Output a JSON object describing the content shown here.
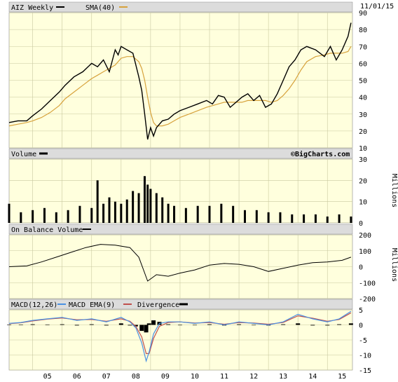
{
  "header": {
    "symbol_label": "AIZ Weekly",
    "sma_label": "SMA(40)",
    "date": "11/01/15",
    "watermark": "©BigCharts.com"
  },
  "volume_panel": {
    "label": "Volume",
    "unit": "Millions"
  },
  "obv_panel": {
    "label": "On Balance Volume",
    "unit": "Millions"
  },
  "macd_panel": {
    "label": "MACD(12,26)",
    "ema_label": "MACD EMA(9)",
    "div_label": "Divergence"
  },
  "x_axis": {
    "labels": [
      "05",
      "06",
      "07",
      "08",
      "09",
      "10",
      "11",
      "12",
      "13",
      "14",
      "15"
    ]
  },
  "colors": {
    "panel_bg": "#ffffdd",
    "grid": "#c8c8a0",
    "header_bg": "#dcdcdc",
    "price": "#000000",
    "sma": "#d7a23c",
    "macd": "#4a90e2",
    "macd_ema": "#c0504d",
    "divergence": "#000000"
  },
  "chart_data": [
    {
      "type": "line",
      "panel": "price",
      "series_names": [
        "AIZ Weekly",
        "SMA(40)"
      ],
      "ylim": [
        10,
        90
      ],
      "yticks": [
        10,
        20,
        30,
        40,
        50,
        60,
        70,
        80,
        90
      ],
      "x": [
        2004.2,
        2004.5,
        2004.8,
        2005.0,
        2005.3,
        2005.6,
        2005.9,
        2006.1,
        2006.4,
        2006.7,
        2007.0,
        2007.2,
        2007.4,
        2007.6,
        2007.8,
        2007.9,
        2008.0,
        2008.2,
        2008.4,
        2008.6,
        2008.7,
        2008.8,
        2008.9,
        2009.0,
        2009.1,
        2009.2,
        2009.4,
        2009.6,
        2009.8,
        2010.0,
        2010.3,
        2010.6,
        2010.9,
        2011.1,
        2011.3,
        2011.5,
        2011.7,
        2011.9,
        2012.1,
        2012.3,
        2012.5,
        2012.7,
        2012.9,
        2013.1,
        2013.3,
        2013.5,
        2013.7,
        2013.9,
        2014.1,
        2014.3,
        2014.6,
        2014.9,
        2015.1,
        2015.3,
        2015.5,
        2015.7,
        2015.8
      ],
      "series": [
        {
          "name": "AIZ Weekly",
          "values": [
            25,
            26,
            26,
            29,
            33,
            38,
            43,
            47,
            52,
            55,
            60,
            58,
            62,
            55,
            68,
            65,
            70,
            68,
            66,
            52,
            44,
            30,
            15,
            22,
            17,
            22,
            26,
            27,
            30,
            32,
            34,
            36,
            38,
            36,
            41,
            40,
            34,
            37,
            40,
            42,
            38,
            41,
            34,
            36,
            42,
            50,
            58,
            62,
            68,
            70,
            68,
            64,
            70,
            62,
            68,
            76,
            84
          ]
        },
        {
          "name": "SMA(40)",
          "values": [
            23,
            24,
            25,
            26,
            28,
            31,
            35,
            39,
            43,
            47,
            51,
            53,
            55,
            57,
            59,
            61,
            63,
            64,
            64,
            61,
            57,
            50,
            40,
            31,
            25,
            23,
            23,
            24,
            26,
            28,
            30,
            32,
            34,
            35,
            36,
            37,
            37,
            37,
            37,
            38,
            38,
            38,
            38,
            37,
            38,
            41,
            45,
            50,
            56,
            61,
            64,
            65,
            66,
            66,
            66,
            67,
            70
          ]
        }
      ]
    },
    {
      "type": "bar",
      "panel": "volume",
      "series_names": [
        "Volume"
      ],
      "ylim": [
        0,
        30
      ],
      "yticks": [
        0,
        10,
        20,
        30
      ],
      "x": [
        2004.2,
        2004.6,
        2005.0,
        2005.4,
        2005.8,
        2006.2,
        2006.6,
        2007.0,
        2007.2,
        2007.4,
        2007.6,
        2007.8,
        2008.0,
        2008.2,
        2008.4,
        2008.6,
        2008.8,
        2008.9,
        2009.0,
        2009.2,
        2009.4,
        2009.6,
        2009.8,
        2010.2,
        2010.6,
        2011.0,
        2011.4,
        2011.8,
        2012.2,
        2012.6,
        2013.0,
        2013.4,
        2013.8,
        2014.2,
        2014.6,
        2015.0,
        2015.4,
        2015.8
      ],
      "series": [
        {
          "name": "Volume",
          "values": [
            9,
            5,
            6,
            7,
            5,
            6,
            8,
            7,
            20,
            9,
            12,
            10,
            9,
            11,
            15,
            14,
            22,
            18,
            16,
            14,
            12,
            9,
            8,
            7,
            8,
            8,
            9,
            8,
            6,
            6,
            5,
            5,
            4,
            4,
            4,
            3,
            4,
            3
          ]
        }
      ]
    },
    {
      "type": "line",
      "panel": "on_balance_volume",
      "series_names": [
        "On Balance Volume"
      ],
      "ylim": [
        -200,
        200
      ],
      "yticks": [
        -200,
        -100,
        0,
        100,
        200
      ],
      "x": [
        2004.2,
        2004.8,
        2005.3,
        2005.8,
        2006.3,
        2006.8,
        2007.3,
        2007.8,
        2008.3,
        2008.6,
        2008.9,
        2009.2,
        2009.6,
        2010.0,
        2010.5,
        2011.0,
        2011.5,
        2012.0,
        2012.5,
        2013.0,
        2013.5,
        2014.0,
        2014.5,
        2015.0,
        2015.5,
        2015.8
      ],
      "series": [
        {
          "name": "On Balance Volume",
          "values": [
            0,
            5,
            30,
            60,
            90,
            120,
            140,
            135,
            120,
            60,
            -90,
            -50,
            -60,
            -40,
            -20,
            10,
            20,
            15,
            0,
            -30,
            -10,
            10,
            25,
            30,
            40,
            60
          ]
        }
      ]
    },
    {
      "type": "line",
      "panel": "macd",
      "series_names": [
        "MACD(12,26)",
        "MACD EMA(9)",
        "Divergence"
      ],
      "ylim": [
        -15,
        5
      ],
      "yticks": [
        -15,
        -10,
        -5,
        0,
        5
      ],
      "x": [
        2004.2,
        2004.6,
        2005.0,
        2005.5,
        2006.0,
        2006.5,
        2007.0,
        2007.5,
        2008.0,
        2008.3,
        2008.5,
        2008.7,
        2008.85,
        2008.95,
        2009.1,
        2009.3,
        2009.6,
        2010.0,
        2010.5,
        2011.0,
        2011.5,
        2012.0,
        2012.5,
        2013.0,
        2013.5,
        2014.0,
        2014.5,
        2015.0,
        2015.4,
        2015.8
      ],
      "series": [
        {
          "name": "MACD(12,26)",
          "values": [
            0.5,
            0.8,
            1.5,
            2.0,
            2.5,
            1.5,
            2.0,
            1.0,
            2.5,
            1.0,
            -1.0,
            -6.0,
            -12.0,
            -9.0,
            -3.0,
            0.5,
            1.0,
            1.0,
            0.5,
            1.0,
            0.0,
            1.0,
            0.5,
            0.0,
            1.0,
            3.5,
            2.0,
            1.0,
            2.0,
            4.5
          ]
        },
        {
          "name": "MACD EMA(9)",
          "values": [
            0.4,
            0.7,
            1.3,
            1.9,
            2.3,
            1.7,
            1.8,
            1.2,
            2.0,
            1.2,
            -0.5,
            -4.0,
            -9.5,
            -9.5,
            -4.5,
            -0.5,
            0.8,
            1.0,
            0.6,
            0.8,
            0.2,
            0.8,
            0.6,
            0.2,
            0.8,
            3.0,
            2.2,
            1.2,
            1.8,
            4.0
          ]
        },
        {
          "name": "Divergence",
          "values": [
            0.1,
            0.1,
            0.2,
            0.1,
            0.2,
            -0.2,
            0.2,
            -0.2,
            0.5,
            -0.2,
            -0.5,
            -2.0,
            -2.5,
            0.5,
            1.5,
            1.0,
            0.2,
            0.0,
            -0.1,
            0.2,
            -0.2,
            0.2,
            -0.1,
            -0.2,
            0.2,
            0.5,
            -0.2,
            -0.2,
            0.2,
            0.5
          ]
        }
      ]
    }
  ]
}
